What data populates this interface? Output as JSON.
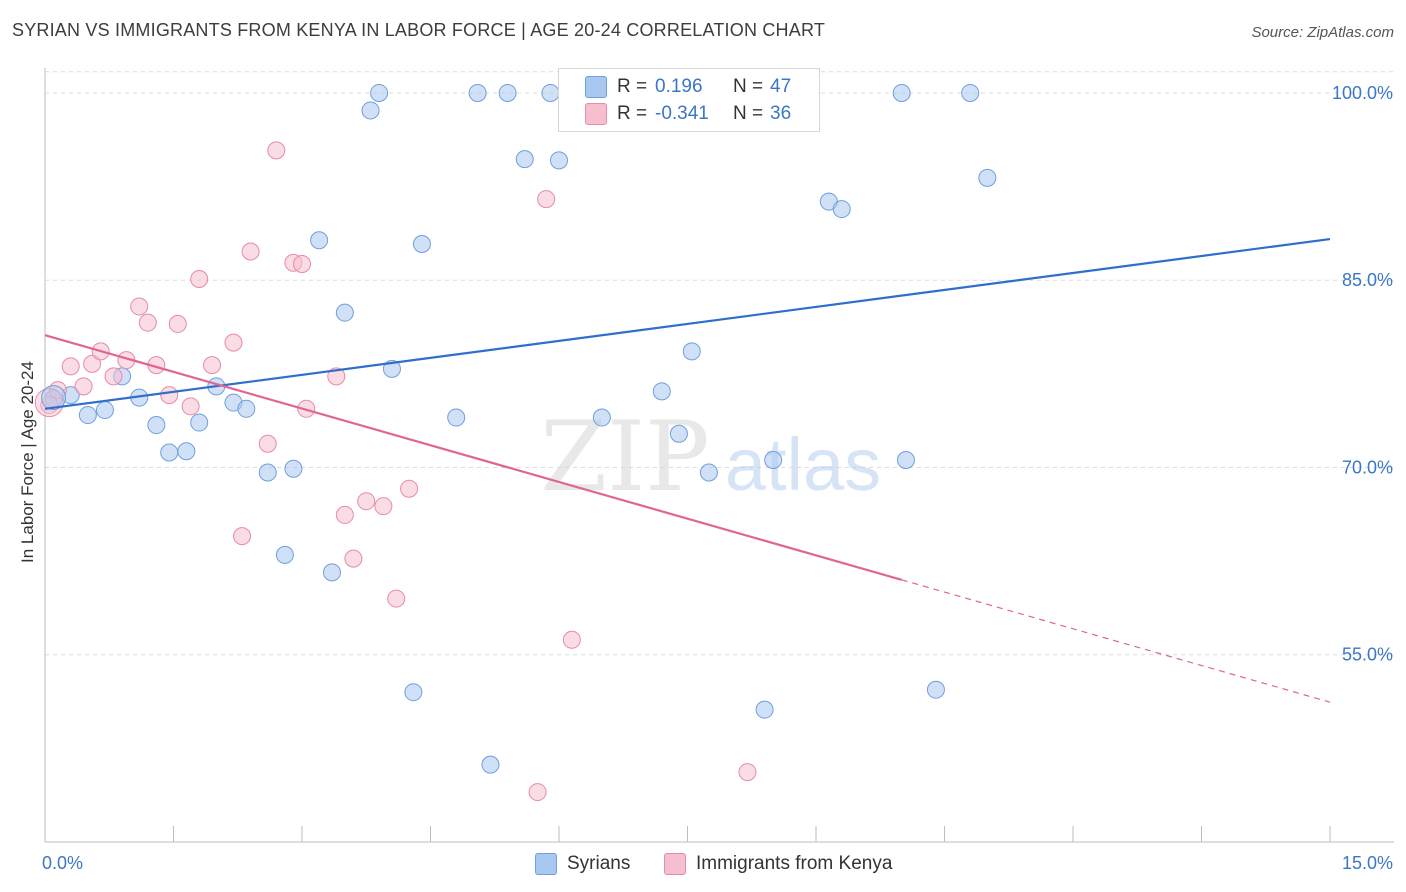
{
  "header": {
    "title": "SYRIAN VS IMMIGRANTS FROM KENYA IN LABOR FORCE | AGE 20-24 CORRELATION CHART",
    "source": "Source: ZipAtlas.com"
  },
  "watermark": {
    "zip": "ZIP",
    "atlas": "atlas"
  },
  "legend": {
    "rows": [
      {
        "r_label": "R =",
        "r_value": "0.196",
        "n_label": "N =",
        "n_value": "47",
        "color": "#a9c8f0",
        "border": "#6f9fdc"
      },
      {
        "r_label": "R =",
        "r_value": "-0.341",
        "n_label": "N =",
        "n_value": "36",
        "color": "#f6bfd0",
        "border": "#e88aa8"
      }
    ]
  },
  "bottom_legend": [
    {
      "label": "Syrians",
      "color": "#a9c8f0",
      "border": "#6f9fdc"
    },
    {
      "label": "Immigrants from Kenya",
      "color": "#f6bfd0",
      "border": "#e88aa8"
    }
  ],
  "chart_data": {
    "type": "scatter",
    "title": "SYRIAN VS IMMIGRANTS FROM KENYA IN LABOR FORCE | AGE 20-24 CORRELATION CHART",
    "xlabel": "",
    "ylabel": "In Labor Force | Age 20-24",
    "xlim": [
      0,
      15
    ],
    "ylim": [
      40,
      102
    ],
    "x_tick_labels": [
      "0.0%",
      "15.0%"
    ],
    "y_ticks": [
      55,
      70,
      85,
      100
    ],
    "y_tick_labels": [
      "55.0%",
      "70.0%",
      "85.0%",
      "100.0%"
    ],
    "grid": true,
    "series": [
      {
        "name": "Syrians",
        "color": "#a9c8f0",
        "stroke": "#6f9fdc",
        "trend_color": "#2f6fcc",
        "trend": {
          "x0": 0,
          "y0": 74.7,
          "x1": 15,
          "y1": 88.3
        },
        "points": [
          [
            0.1,
            75.5
          ],
          [
            0.3,
            75.8
          ],
          [
            0.5,
            74.2
          ],
          [
            0.7,
            74.6
          ],
          [
            0.9,
            77.3
          ],
          [
            1.1,
            75.6
          ],
          [
            1.3,
            73.4
          ],
          [
            1.45,
            71.2
          ],
          [
            1.65,
            71.3
          ],
          [
            1.8,
            73.6
          ],
          [
            2.0,
            76.5
          ],
          [
            2.2,
            75.2
          ],
          [
            2.35,
            74.7
          ],
          [
            2.6,
            69.6
          ],
          [
            2.8,
            63.0
          ],
          [
            2.9,
            69.9
          ],
          [
            3.2,
            88.2
          ],
          [
            3.35,
            61.6
          ],
          [
            3.5,
            82.4
          ],
          [
            3.8,
            98.6
          ],
          [
            3.9,
            100.0
          ],
          [
            4.05,
            77.9
          ],
          [
            4.3,
            52.0
          ],
          [
            4.4,
            87.9
          ],
          [
            4.8,
            74.0
          ],
          [
            5.05,
            100.0
          ],
          [
            5.2,
            46.2
          ],
          [
            5.4,
            100.0
          ],
          [
            5.6,
            94.7
          ],
          [
            5.9,
            100.0
          ],
          [
            6.0,
            94.6
          ],
          [
            6.5,
            74.0
          ],
          [
            6.7,
            100.0
          ],
          [
            6.9,
            100.0
          ],
          [
            7.2,
            76.1
          ],
          [
            7.4,
            72.7
          ],
          [
            7.55,
            79.3
          ],
          [
            7.75,
            69.6
          ],
          [
            8.4,
            50.6
          ],
          [
            8.5,
            70.6
          ],
          [
            9.15,
            91.3
          ],
          [
            9.3,
            90.7
          ],
          [
            10.0,
            100.0
          ],
          [
            10.05,
            70.6
          ],
          [
            10.4,
            52.2
          ],
          [
            10.8,
            100.0
          ],
          [
            11.0,
            93.2
          ]
        ]
      },
      {
        "name": "Immigrants from Kenya",
        "color": "#f6bfd0",
        "stroke": "#e88aa8",
        "trend_color": "#e0668f",
        "trend": {
          "x0": 0,
          "y0": 80.6,
          "x1": 10.0,
          "y1": 61.0
        },
        "trend_dashed": {
          "x0": 10.0,
          "y0": 61.0,
          "x1": 15,
          "y1": 51.2
        },
        "points": [
          [
            0.05,
            75.0
          ],
          [
            0.15,
            76.2
          ],
          [
            0.3,
            78.1
          ],
          [
            0.45,
            76.5
          ],
          [
            0.55,
            78.3
          ],
          [
            0.65,
            79.3
          ],
          [
            0.8,
            77.3
          ],
          [
            0.95,
            78.6
          ],
          [
            1.1,
            82.9
          ],
          [
            1.2,
            81.6
          ],
          [
            1.3,
            78.2
          ],
          [
            1.45,
            75.8
          ],
          [
            1.55,
            81.5
          ],
          [
            1.7,
            74.9
          ],
          [
            1.8,
            85.1
          ],
          [
            1.95,
            78.2
          ],
          [
            2.2,
            80.0
          ],
          [
            2.3,
            64.5
          ],
          [
            2.4,
            87.3
          ],
          [
            2.6,
            71.9
          ],
          [
            2.7,
            95.4
          ],
          [
            2.9,
            86.4
          ],
          [
            3.0,
            86.3
          ],
          [
            3.05,
            74.7
          ],
          [
            3.4,
            77.3
          ],
          [
            3.5,
            66.2
          ],
          [
            3.6,
            62.7
          ],
          [
            3.75,
            67.3
          ],
          [
            3.95,
            66.9
          ],
          [
            4.1,
            59.5
          ],
          [
            4.25,
            68.3
          ],
          [
            5.75,
            44.0
          ],
          [
            5.85,
            91.5
          ],
          [
            6.15,
            56.2
          ],
          [
            7.9,
            100.0
          ],
          [
            8.2,
            45.6
          ]
        ]
      }
    ]
  }
}
